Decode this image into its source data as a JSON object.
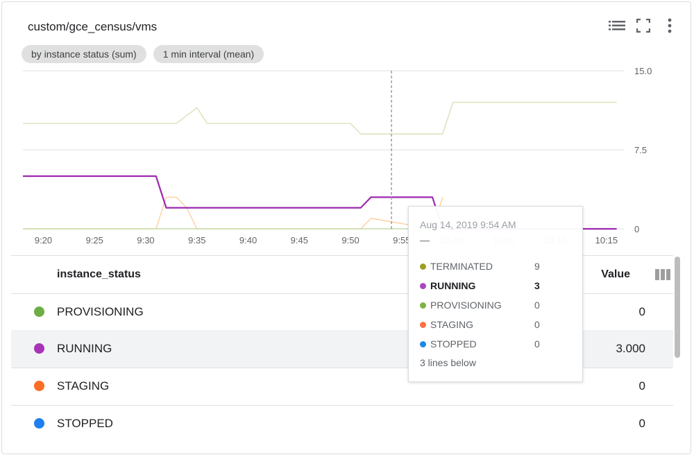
{
  "widget": {
    "title": "custom/gce_census/vms",
    "chips": [
      "by instance status (sum)",
      "1 min interval (mean)"
    ],
    "toolbar_icons": [
      "legend-list-icon",
      "fullscreen-icon",
      "more-vert-icon"
    ]
  },
  "chart_data": {
    "type": "line",
    "x_tick_labels": [
      "9:20",
      "9:25",
      "9:30",
      "9:35",
      "9:40",
      "9:45",
      "9:50",
      "9:55",
      "10 AM",
      "10:05",
      "10:10",
      "10:15"
    ],
    "x_tick_minutes": [
      20,
      25,
      30,
      35,
      40,
      45,
      50,
      55,
      60,
      65,
      70,
      75
    ],
    "xlim_minutes": [
      18,
      76.5
    ],
    "y_tick_labels": [
      "15.0",
      "7.5",
      "0"
    ],
    "y_tick_values": [
      15,
      7.5,
      0
    ],
    "ylim": [
      0,
      15
    ],
    "cursor_minute": 54,
    "series": [
      {
        "name": "TERMINATED",
        "color": "#dfe3bf",
        "width": 1.6,
        "x": [
          18,
          33,
          35,
          36,
          50,
          51,
          59,
          60,
          76
        ],
        "y": [
          10,
          10,
          11.5,
          10,
          10,
          9,
          9,
          12,
          12
        ]
      },
      {
        "name": "STAGING",
        "color": "#ffcc99",
        "width": 1.3,
        "x": [
          18,
          31,
          32,
          33,
          34,
          35,
          51,
          52,
          58,
          59
        ],
        "y": [
          0,
          0,
          3,
          3,
          2,
          0,
          0,
          1,
          0,
          3
        ]
      },
      {
        "name": "PROVISIONING",
        "color": "#b9d59b",
        "width": 1.3,
        "x": [
          18,
          76
        ],
        "y": [
          0,
          0
        ]
      },
      {
        "name": "RUNNING",
        "color": "#9c27b0",
        "width": 2.2,
        "x": [
          18,
          31,
          32,
          51,
          52,
          58,
          59,
          76
        ],
        "y": [
          5,
          5,
          2,
          2,
          3,
          3,
          0,
          0
        ]
      }
    ]
  },
  "tooltip": {
    "datetime": "Aug 14, 2019 9:54 AM",
    "dash": "—",
    "rows": [
      {
        "name": "TERMINATED",
        "value": "9",
        "color": "#9e9d24"
      },
      {
        "name": "RUNNING",
        "value": "3",
        "color": "#ab47bc"
      },
      {
        "name": "PROVISIONING",
        "value": "0",
        "color": "#7cb342"
      },
      {
        "name": "STAGING",
        "value": "0",
        "color": "#ff7043"
      },
      {
        "name": "STOPPED",
        "value": "0",
        "color": "#1e88e5"
      }
    ],
    "more": "3 lines below"
  },
  "table": {
    "col_status": "instance_status",
    "col_value": "Value",
    "rows": [
      {
        "status": "PROVISIONING",
        "value": "0",
        "color": "#6cae45"
      },
      {
        "status": "RUNNING",
        "value": "3.000",
        "color": "#a733b8"
      },
      {
        "status": "STAGING",
        "value": "0",
        "color": "#fa6d22"
      },
      {
        "status": "STOPPED",
        "value": "0",
        "color": "#1d7ff0"
      }
    ]
  }
}
